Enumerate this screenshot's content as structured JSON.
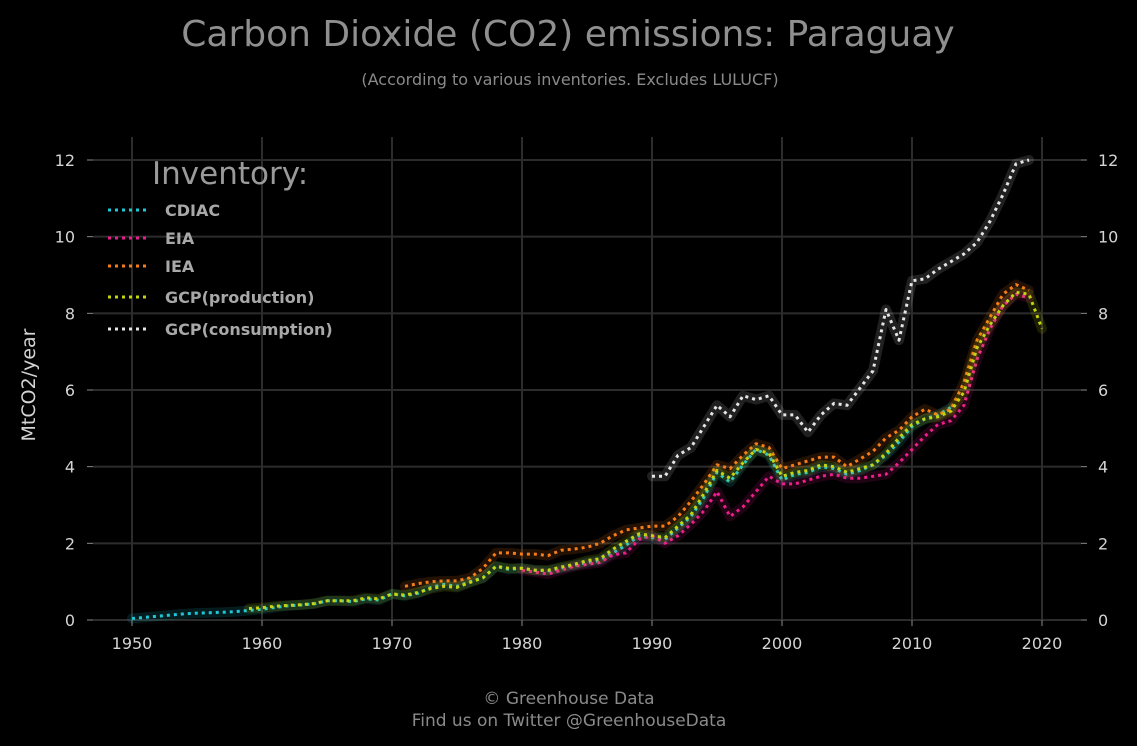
{
  "chart_data": {
    "type": "line",
    "title": "Carbon Dioxide (CO2) emissions: Paraguay",
    "subtitle": "(According to various inventories. Excludes LULUCF)",
    "xlabel": "",
    "ylabel": "MtCO2/year",
    "xlim": [
      1947,
      2023
    ],
    "ylim": [
      0,
      12.6
    ],
    "x_ticks": [
      1950,
      1960,
      1970,
      1980,
      1990,
      2000,
      2010,
      2020
    ],
    "y_ticks": [
      0,
      2,
      4,
      6,
      8,
      10,
      12
    ],
    "grid": true,
    "legend_title": "Inventory:",
    "legend_position": "top-left",
    "line_style": "dotted",
    "series": [
      {
        "name": "CDIAC",
        "color": "#1ec8d8",
        "x": [
          1950,
          1951,
          1952,
          1953,
          1954,
          1955,
          1956,
          1957,
          1958,
          1959,
          1960,
          1961,
          1962,
          1963,
          1964,
          1965,
          1966,
          1967,
          1968,
          1969,
          1970,
          1971,
          1972,
          1973,
          1974,
          1975,
          1976,
          1977,
          1978,
          1979,
          1980,
          1981,
          1982,
          1983,
          1984,
          1985,
          1986,
          1987,
          1988,
          1989,
          1990,
          1991,
          1992,
          1993,
          1994,
          1995,
          1996,
          1997,
          1998,
          1999,
          2000,
          2001,
          2002,
          2003,
          2004,
          2005,
          2006,
          2007,
          2008,
          2009,
          2010,
          2011,
          2012,
          2013
        ],
        "y": [
          0.04,
          0.07,
          0.1,
          0.13,
          0.16,
          0.18,
          0.19,
          0.2,
          0.22,
          0.25,
          0.28,
          0.33,
          0.37,
          0.39,
          0.42,
          0.5,
          0.5,
          0.48,
          0.55,
          0.52,
          0.68,
          0.63,
          0.7,
          0.85,
          0.93,
          0.88,
          1.0,
          1.1,
          1.4,
          1.32,
          1.35,
          1.3,
          1.28,
          1.35,
          1.42,
          1.5,
          1.55,
          1.75,
          1.95,
          2.2,
          2.15,
          2.1,
          2.4,
          2.7,
          3.2,
          3.85,
          3.6,
          4.05,
          4.45,
          4.3,
          3.65,
          3.8,
          3.85,
          4.0,
          3.95,
          3.8,
          3.9,
          4.05,
          4.3,
          4.65,
          5.05,
          5.25,
          5.35,
          5.55
        ]
      },
      {
        "name": "EIA",
        "color": "#ec1e8c",
        "x": [
          1980,
          1981,
          1982,
          1983,
          1984,
          1985,
          1986,
          1987,
          1988,
          1989,
          1990,
          1991,
          1992,
          1993,
          1994,
          1995,
          1996,
          1997,
          1998,
          1999,
          2000,
          2001,
          2002,
          2003,
          2004,
          2005,
          2006,
          2007,
          2008,
          2009,
          2010,
          2011,
          2012,
          2013,
          2014,
          2015,
          2016,
          2017,
          2018,
          2019
        ],
        "y": [
          1.3,
          1.25,
          1.2,
          1.3,
          1.4,
          1.45,
          1.5,
          1.7,
          1.75,
          2.1,
          2.2,
          2.0,
          2.2,
          2.5,
          2.85,
          3.35,
          2.7,
          2.95,
          3.35,
          3.75,
          3.55,
          3.55,
          3.65,
          3.75,
          3.8,
          3.7,
          3.7,
          3.75,
          3.8,
          4.1,
          4.45,
          4.8,
          5.1,
          5.2,
          5.6,
          6.8,
          7.6,
          8.2,
          8.5,
          8.4
        ]
      },
      {
        "name": "IEA",
        "color": "#f57c19",
        "x": [
          1971,
          1972,
          1973,
          1974,
          1975,
          1976,
          1977,
          1978,
          1979,
          1980,
          1981,
          1982,
          1983,
          1984,
          1985,
          1986,
          1987,
          1988,
          1989,
          1990,
          1991,
          1992,
          1993,
          1994,
          1995,
          1996,
          1997,
          1998,
          1999,
          2000,
          2001,
          2002,
          2003,
          2004,
          2005,
          2006,
          2007,
          2008,
          2009,
          2010,
          2011,
          2012,
          2013,
          2014,
          2015,
          2016,
          2017,
          2018,
          2019
        ],
        "y": [
          0.88,
          0.95,
          1.0,
          1.02,
          1.02,
          1.1,
          1.35,
          1.75,
          1.75,
          1.72,
          1.72,
          1.68,
          1.82,
          1.85,
          1.9,
          2.0,
          2.2,
          2.35,
          2.4,
          2.45,
          2.45,
          2.7,
          3.1,
          3.55,
          4.05,
          3.95,
          4.3,
          4.6,
          4.5,
          3.95,
          4.05,
          4.15,
          4.25,
          4.25,
          4.0,
          4.2,
          4.4,
          4.75,
          4.95,
          5.3,
          5.5,
          5.35,
          5.5,
          6.2,
          7.3,
          7.9,
          8.5,
          8.75,
          8.6
        ]
      },
      {
        "name": "GCP(production)",
        "color": "#c4d410",
        "x": [
          1959,
          1960,
          1961,
          1962,
          1963,
          1964,
          1965,
          1966,
          1967,
          1968,
          1969,
          1970,
          1971,
          1972,
          1973,
          1974,
          1975,
          1976,
          1977,
          1978,
          1979,
          1980,
          1981,
          1982,
          1983,
          1984,
          1985,
          1986,
          1987,
          1988,
          1989,
          1990,
          1991,
          1992,
          1993,
          1994,
          1995,
          1996,
          1997,
          1998,
          1999,
          2000,
          2001,
          2002,
          2003,
          2004,
          2005,
          2006,
          2007,
          2008,
          2009,
          2010,
          2011,
          2012,
          2013,
          2014,
          2015,
          2016,
          2017,
          2018,
          2019,
          2020
        ],
        "y": [
          0.3,
          0.32,
          0.36,
          0.38,
          0.4,
          0.43,
          0.5,
          0.5,
          0.5,
          0.58,
          0.55,
          0.68,
          0.65,
          0.72,
          0.82,
          0.88,
          0.85,
          0.98,
          1.1,
          1.4,
          1.35,
          1.35,
          1.3,
          1.3,
          1.38,
          1.45,
          1.55,
          1.6,
          1.85,
          2.05,
          2.25,
          2.2,
          2.15,
          2.45,
          2.75,
          3.3,
          3.9,
          3.7,
          4.1,
          4.45,
          4.35,
          3.75,
          3.85,
          3.9,
          4.05,
          4.0,
          3.85,
          3.95,
          4.05,
          4.35,
          4.75,
          5.1,
          5.25,
          5.3,
          5.45,
          5.95,
          7.1,
          7.7,
          8.2,
          8.55,
          8.5,
          7.6
        ]
      },
      {
        "name": "GCP(consumption)",
        "color": "#e6e6e6",
        "x": [
          1990,
          1991,
          1992,
          1993,
          1994,
          1995,
          1996,
          1997,
          1998,
          1999,
          2000,
          2001,
          2002,
          2003,
          2004,
          2005,
          2006,
          2007,
          2008,
          2009,
          2010,
          2011,
          2012,
          2013,
          2014,
          2015,
          2016,
          2017,
          2018,
          2019
        ],
        "y": [
          3.75,
          3.75,
          4.3,
          4.5,
          5.05,
          5.6,
          5.3,
          5.85,
          5.75,
          5.85,
          5.35,
          5.35,
          4.9,
          5.35,
          5.65,
          5.6,
          6.05,
          6.5,
          8.1,
          7.3,
          8.85,
          8.9,
          9.15,
          9.35,
          9.55,
          9.85,
          10.4,
          11.1,
          11.9,
          12.0
        ]
      }
    ]
  },
  "footer": {
    "copyright": "© Greenhouse Data",
    "twitter": "Find us on Twitter @GreenhouseData"
  }
}
